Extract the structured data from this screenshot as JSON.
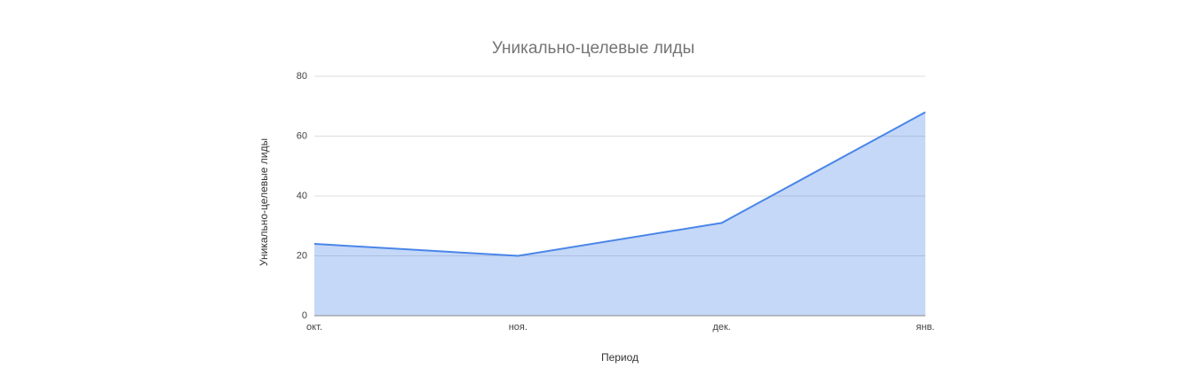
{
  "chart_data": {
    "type": "area",
    "title": "Уникально-целевые лиды",
    "x_label": "Период",
    "y_label": "Уникально-целевые лиды",
    "categories": [
      "окт.",
      "ноя.",
      "дек.",
      "янв."
    ],
    "values": [
      24,
      20,
      31,
      68
    ],
    "color": "#4a86e8",
    "ylim": [
      0,
      80
    ],
    "yticks": [
      0,
      20,
      40,
      60,
      80
    ],
    "grid": true
  }
}
